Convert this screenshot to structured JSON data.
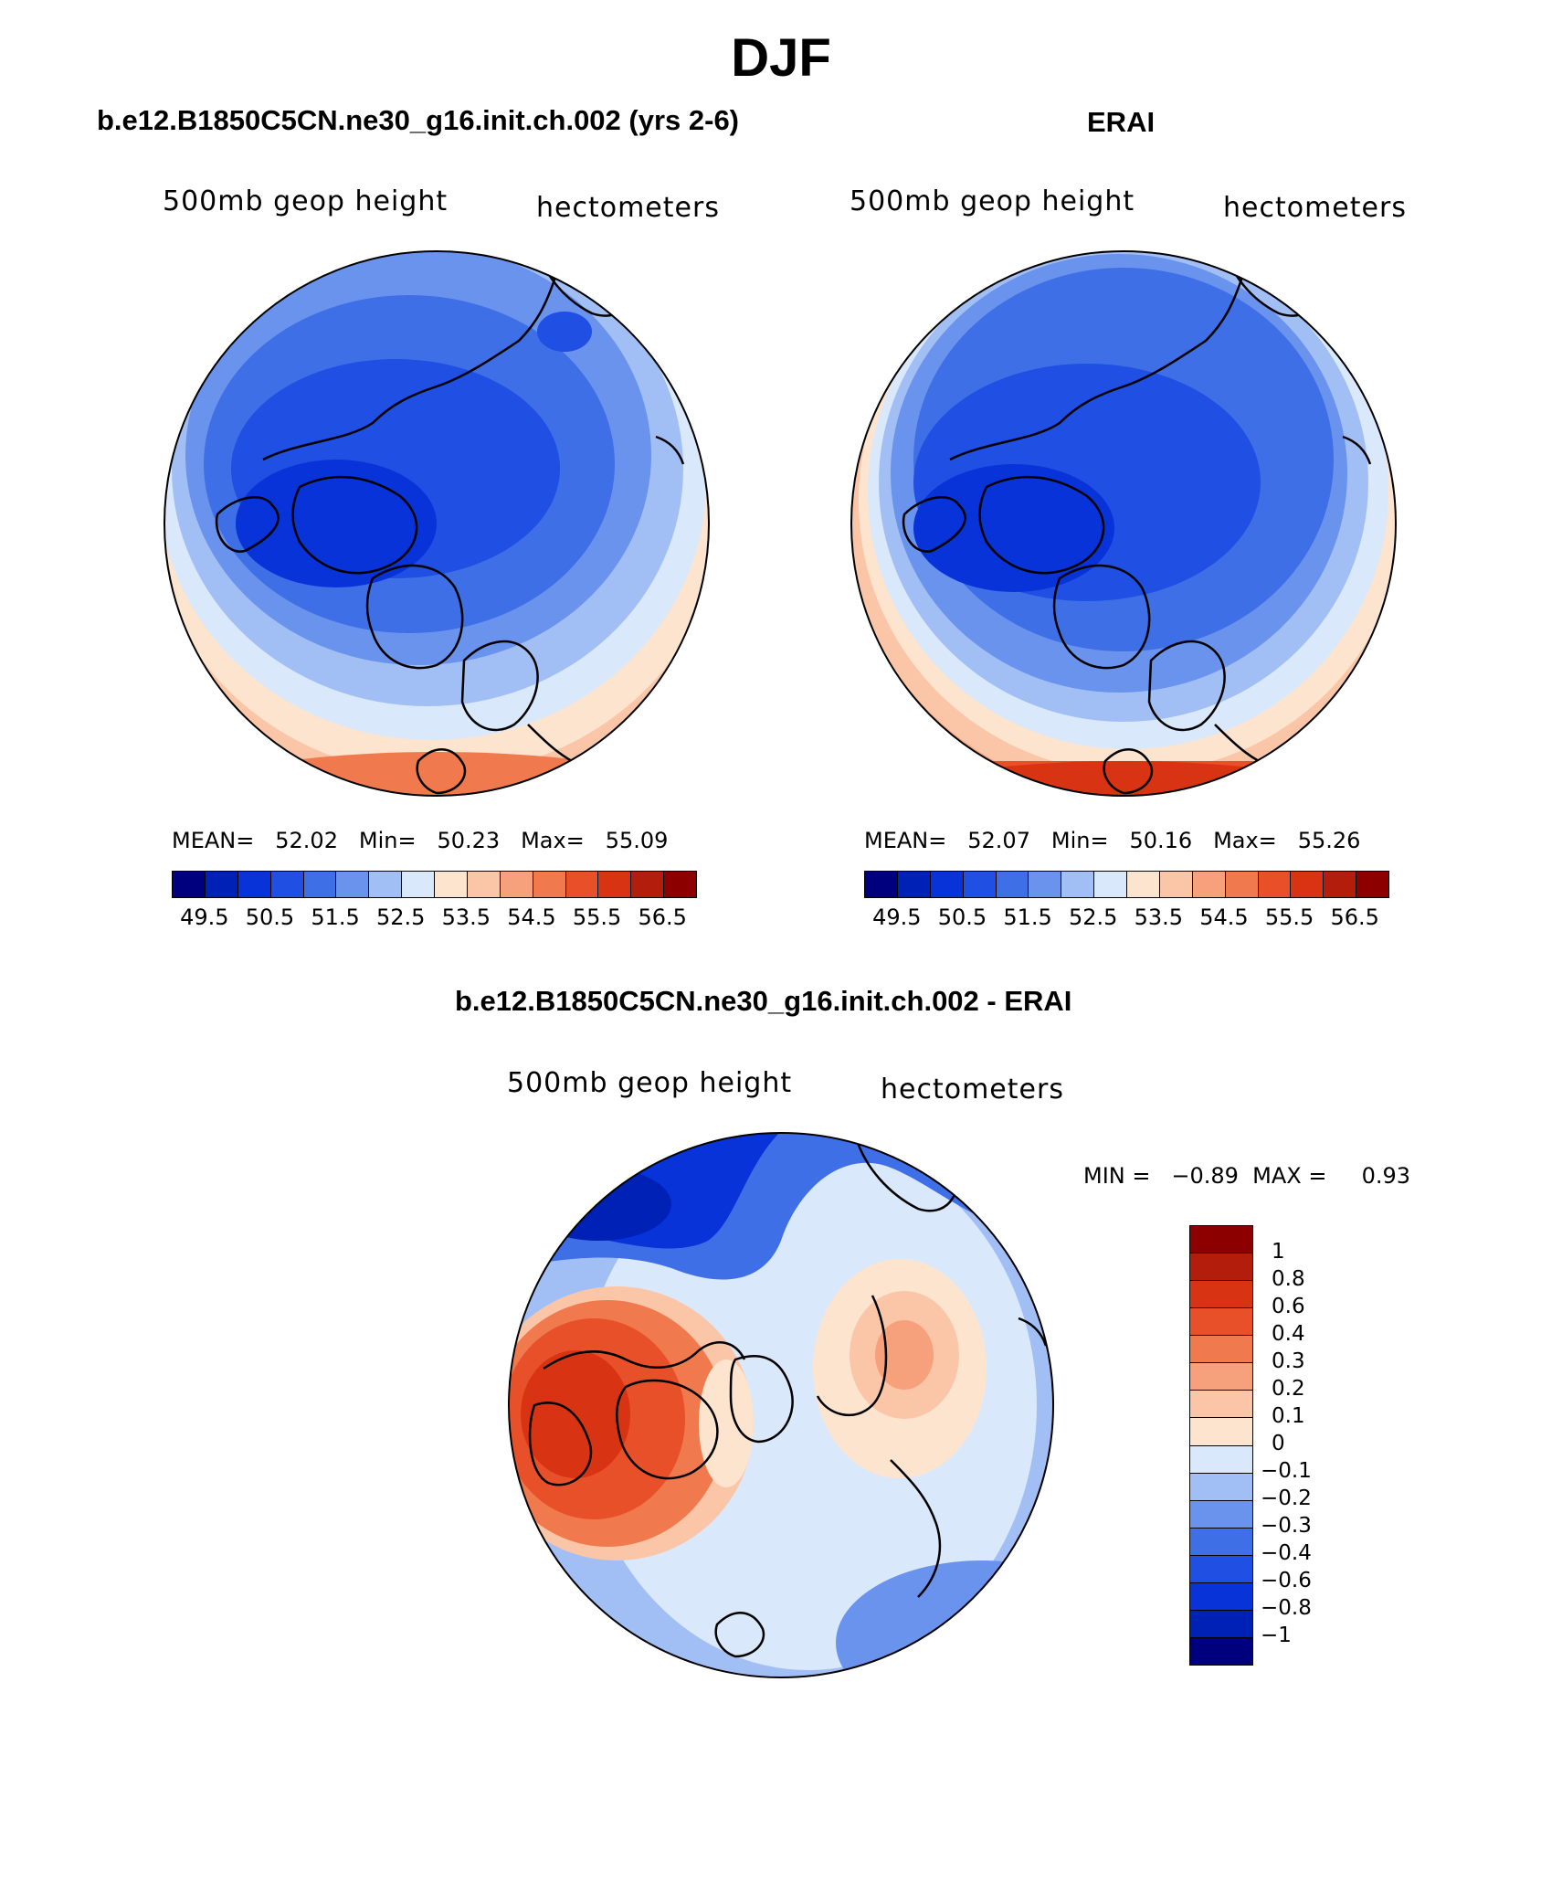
{
  "figure": {
    "title": "DJF"
  },
  "colors": {
    "abs_scale": [
      "#00007f",
      "#0021b5",
      "#0733d9",
      "#1f4fe3",
      "#3f6fe6",
      "#6a93ee",
      "#a2bff5",
      "#d9e8fb",
      "#fde4cf",
      "#fbc6a8",
      "#f6a07c",
      "#f07a4e",
      "#e8502a",
      "#d83414",
      "#b21d0c",
      "#8c0000"
    ],
    "diff_scale": [
      "#00007f",
      "#0021b5",
      "#0733d9",
      "#1f4fe3",
      "#3f6fe6",
      "#6a93ee",
      "#a2bff5",
      "#d9e8fb",
      "#fde4cf",
      "#fbc6a8",
      "#f6a07c",
      "#f07a4e",
      "#e8502a",
      "#d83414",
      "#b21d0c",
      "#8c0000"
    ]
  },
  "panels": {
    "model": {
      "title": "b.e12.B1850C5CN.ne30_g16.init.ch.002 (yrs 2-6)",
      "left_label": "500mb geop height",
      "right_label": "hectometers",
      "mean_label": "MEAN=",
      "mean_value": "52.02",
      "min_label": "Min=",
      "min_value": "50.23",
      "max_label": "Max=",
      "max_value": "55.09",
      "ticks": [
        "49.5",
        "50.5",
        "51.5",
        "52.5",
        "53.5",
        "54.5",
        "55.5",
        "56.5"
      ]
    },
    "obs": {
      "title": "ERAI",
      "left_label": "500mb geop height",
      "right_label": "hectometers",
      "mean_label": "MEAN=",
      "mean_value": "52.07",
      "min_label": "Min=",
      "min_value": "50.16",
      "max_label": "Max=",
      "max_value": "55.26",
      "ticks": [
        "49.5",
        "50.5",
        "51.5",
        "52.5",
        "53.5",
        "54.5",
        "55.5",
        "56.5"
      ]
    },
    "diff": {
      "title": "b.e12.B1850C5CN.ne30_g16.init.ch.002 - ERAI",
      "left_label": "500mb geop height",
      "right_label": "hectometers",
      "minmax": "MIN =   −0.89  MAX =     0.93",
      "levels": [
        "1",
        "0.8",
        "0.6",
        "0.4",
        "0.3",
        "0.2",
        "0.1",
        "0",
        "−0.1",
        "−0.2",
        "−0.3",
        "−0.4",
        "−0.6",
        "−0.8",
        "−1"
      ]
    }
  }
}
